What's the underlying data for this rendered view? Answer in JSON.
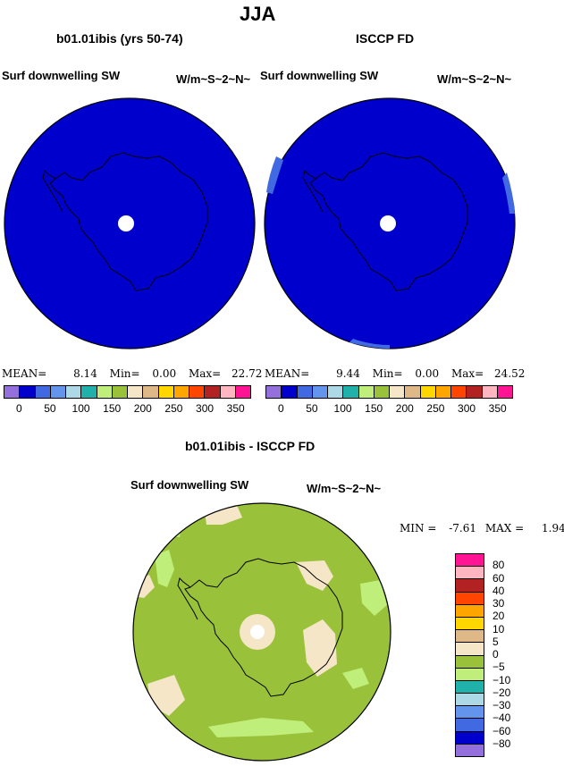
{
  "page_title": "JJA",
  "panel_left": {
    "title": "b01.01ibis (yrs 50-74)",
    "left_label": "Surf downwelling SW",
    "right_label": "W/m~S~2~N~",
    "stats": {
      "mean_label": "MEAN=",
      "mean": "8.14",
      "min_label": "Min=",
      "min": "0.00",
      "max_label": "Max=",
      "max": "22.72"
    }
  },
  "panel_right": {
    "title": "ISCCP FD",
    "left_label": "Surf downwelling SW",
    "right_label": "W/m~S~2~N~",
    "stats": {
      "mean_label": "MEAN=",
      "mean": "9.44",
      "min_label": "Min=",
      "min": "0.00",
      "max_label": "Max=",
      "max": "24.52"
    }
  },
  "top_colorbar": {
    "colors": [
      "#9370db",
      "#0000cd",
      "#4169e1",
      "#6495ed",
      "#add8e6",
      "#20b2aa",
      "#bfef7a",
      "#99c13a",
      "#f5e6c8",
      "#deb887",
      "#ffd700",
      "#ffa500",
      "#ff4500",
      "#b22222",
      "#ffb6c1",
      "#ff1493"
    ],
    "tick_labels": [
      "0",
      "50",
      "100",
      "150",
      "200",
      "250",
      "300",
      "350"
    ]
  },
  "diff_panel": {
    "title": "b01.01ibis - ISCCP FD",
    "left_label": "Surf downwelling SW",
    "right_label": "W/m~S~2~N~",
    "stats": {
      "min_label": "MIN =",
      "min": "-7.61",
      "max_label": "MAX =",
      "max": "1.94"
    }
  },
  "diff_colorbar": {
    "colors": [
      "#ff1493",
      "#ffb6c1",
      "#b22222",
      "#ff4500",
      "#ffa500",
      "#ffd700",
      "#deb887",
      "#f5e6c8",
      "#99c13a",
      "#bfef7a",
      "#20b2aa",
      "#add8e6",
      "#6495ed",
      "#4169e1",
      "#0000cd",
      "#9370db"
    ],
    "tick_labels": [
      "80",
      "60",
      "40",
      "30",
      "20",
      "10",
      "5",
      "0",
      "−5",
      "−10",
      "−20",
      "−30",
      "−40",
      "−60",
      "−80"
    ]
  },
  "colors": {
    "map_blue": "#0000cd",
    "diff_green": "#99c13a",
    "diff_light_green": "#bfef7a",
    "diff_tan": "#f5e6c8"
  }
}
